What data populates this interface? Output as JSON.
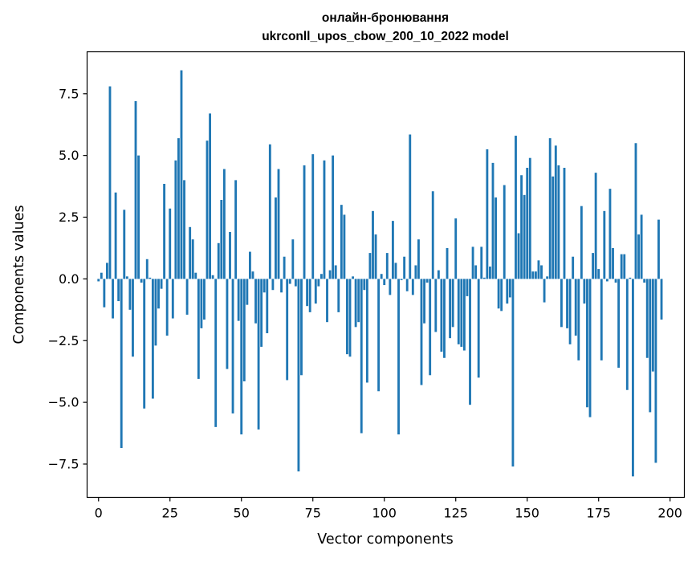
{
  "chart_data": {
    "type": "bar",
    "title": [
      "онлайн-бронювання",
      "ukrconll_upos_cbow_200_10_2022 model"
    ],
    "xlabel": "Vector components",
    "ylabel": "Components values",
    "xlim": [
      -4,
      205
    ],
    "ylim": [
      -8.85,
      9.2
    ],
    "xticks": [
      0,
      25,
      50,
      75,
      100,
      125,
      150,
      175,
      200
    ],
    "xtick_labels": [
      "0",
      "25",
      "50",
      "75",
      "100",
      "125",
      "150",
      "175",
      "200"
    ],
    "yticks": [
      -7.5,
      -5.0,
      -2.5,
      0.0,
      2.5,
      5.0,
      7.5
    ],
    "ytick_labels": [
      "−7.5",
      "−5.0",
      "−2.5",
      "0.0",
      "2.5",
      "5.0",
      "7.5"
    ],
    "bar_color": "#1f77b4",
    "grid": false,
    "values": [
      -0.1,
      0.25,
      -1.15,
      0.65,
      7.8,
      -1.6,
      3.5,
      -0.9,
      -6.85,
      2.8,
      0.1,
      -1.25,
      -3.15,
      7.2,
      5.0,
      -0.15,
      -5.25,
      0.8,
      0.05,
      -4.85,
      -2.7,
      -1.2,
      -0.4,
      3.85,
      -2.3,
      2.85,
      -1.6,
      4.8,
      5.7,
      8.45,
      4.0,
      -1.45,
      2.1,
      1.6,
      0.25,
      -4.05,
      -2.0,
      -1.65,
      5.6,
      6.7,
      0.15,
      -6.0,
      1.45,
      3.2,
      4.45,
      -3.65,
      1.9,
      -5.45,
      4.0,
      -1.7,
      -6.3,
      -4.15,
      -1.05,
      1.1,
      0.3,
      -1.8,
      -6.1,
      -2.75,
      -0.55,
      -2.2,
      5.45,
      -0.45,
      3.3,
      4.45,
      -0.55,
      0.9,
      -4.1,
      -0.2,
      1.6,
      -0.3,
      -7.8,
      -3.9,
      4.6,
      -1.1,
      -1.35,
      5.05,
      -1.0,
      -0.3,
      0.2,
      4.8,
      -1.75,
      0.35,
      5.0,
      0.55,
      -1.35,
      3.0,
      2.6,
      -3.05,
      -3.15,
      0.1,
      -1.95,
      -1.75,
      -6.25,
      -0.45,
      -4.2,
      1.05,
      2.75,
      1.8,
      -4.55,
      0.2,
      -0.25,
      1.05,
      -0.65,
      2.35,
      0.65,
      -6.3,
      -0.05,
      0.9,
      -0.5,
      5.85,
      -0.65,
      0.55,
      1.6,
      -4.3,
      -1.8,
      -0.15,
      -3.9,
      3.55,
      -2.15,
      0.35,
      -2.95,
      -3.2,
      1.25,
      -2.4,
      -1.95,
      2.45,
      -2.65,
      -2.75,
      -2.9,
      -0.7,
      -5.1,
      1.3,
      0.55,
      -4.0,
      1.3,
      0.05,
      5.25,
      0.5,
      4.7,
      3.3,
      -1.2,
      -1.3,
      3.8,
      -1.0,
      -0.75,
      -7.6,
      5.8,
      1.85,
      4.2,
      3.4,
      4.5,
      4.9,
      0.3,
      0.3,
      0.75,
      0.55,
      -0.95,
      0.1,
      5.7,
      4.15,
      5.4,
      4.6,
      -1.95,
      4.5,
      -2.0,
      -2.65,
      0.9,
      -2.3,
      -3.3,
      2.95,
      -1.0,
      -5.2,
      -5.6,
      1.05,
      4.3,
      0.4,
      -3.3,
      2.75,
      -0.1,
      3.65,
      1.25,
      -0.15,
      -3.6,
      1.0,
      1.0,
      -4.5,
      0.05,
      -8.0,
      5.5,
      1.8,
      2.6,
      -0.15,
      -3.2,
      -5.4,
      -3.75,
      -7.45,
      2.4,
      -1.65
    ]
  }
}
